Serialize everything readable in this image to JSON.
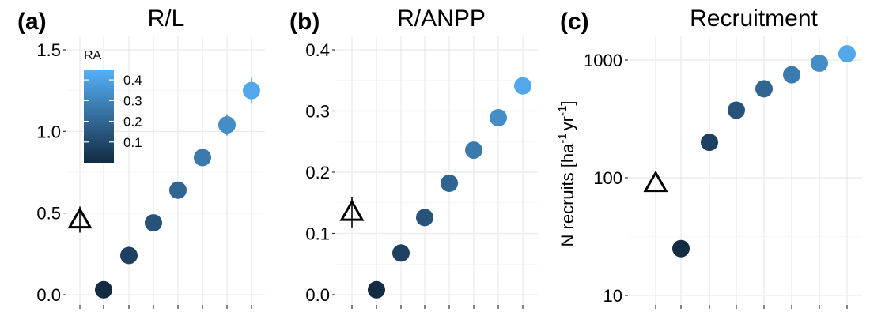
{
  "panels": [
    {
      "tag": "(a)",
      "title": "R/L",
      "ylabel": "",
      "scale": "linear",
      "ylim": [
        -0.02,
        1.57
      ],
      "yticks": [
        "0.0",
        "0.5",
        "1.0",
        "1.5"
      ],
      "ytick_values": [
        0,
        0.5,
        1.0,
        1.5
      ],
      "legend": true
    },
    {
      "tag": "(b)",
      "title": "R/ANPP",
      "ylabel": "",
      "scale": "linear",
      "ylim": [
        -0.01,
        0.415
      ],
      "yticks": [
        "0.0",
        "0.1",
        "0.2",
        "0.3",
        "0.4"
      ],
      "ytick_values": [
        0,
        0.1,
        0.2,
        0.3,
        0.4
      ],
      "legend": false
    },
    {
      "tag": "(c)",
      "title": "Recruitment",
      "ylabel": "N recruits [ha",
      "ylabel_sup1": "-1",
      "ylabel_mid": "yr",
      "ylabel_sup2": "-1",
      "ylabel_end": "]",
      "scale": "log",
      "ylim": [
        8.7,
        1550
      ],
      "yticks": [
        "10",
        "100",
        "1000"
      ],
      "ytick_values": [
        10,
        100,
        1000
      ],
      "legend": false
    }
  ],
  "legend": {
    "title": "RA",
    "labels": [
      "0.1",
      "0.2",
      "0.3",
      "0.4"
    ],
    "values": [
      0.1,
      0.2,
      0.3,
      0.4
    ],
    "range": [
      0.0,
      0.45
    ],
    "color_low": "#132B43",
    "color_high": "#56B1F7"
  },
  "chart_data": [
    {
      "type": "scatter",
      "title": "R/L",
      "x": [
        1,
        2,
        3,
        4,
        5,
        6,
        7,
        8
      ],
      "y": [
        0.46,
        0.03,
        0.24,
        0.44,
        0.64,
        0.84,
        1.04,
        1.25
      ],
      "ra": [
        null,
        0.0,
        0.075,
        0.135,
        0.195,
        0.265,
        0.33,
        0.42
      ],
      "yerr": [
        0.08,
        0.015,
        0.02,
        0.03,
        0.04,
        0.05,
        0.065,
        0.08
      ],
      "marker": [
        "triangle",
        "circle",
        "circle",
        "circle",
        "circle",
        "circle",
        "circle",
        "circle"
      ],
      "ylim": [
        -0.02,
        1.57
      ],
      "grid": true
    },
    {
      "type": "scatter",
      "title": "R/ANPP",
      "x": [
        1,
        2,
        3,
        4,
        5,
        6,
        7,
        8
      ],
      "y": [
        0.135,
        0.008,
        0.068,
        0.126,
        0.182,
        0.236,
        0.289,
        0.341
      ],
      "ra": [
        null,
        0.0,
        0.075,
        0.135,
        0.195,
        0.265,
        0.33,
        0.42
      ],
      "yerr": [
        0.025,
        0.003,
        0.005,
        0.007,
        0.008,
        0.009,
        0.01,
        0.012
      ],
      "marker": [
        "triangle",
        "circle",
        "circle",
        "circle",
        "circle",
        "circle",
        "circle",
        "circle"
      ],
      "ylim": [
        -0.01,
        0.415
      ],
      "grid": true
    },
    {
      "type": "scatter",
      "title": "Recruitment",
      "ylabel": "N recruits [ha-1 yr-1]",
      "x": [
        1,
        2,
        3,
        4,
        5,
        6,
        7,
        8
      ],
      "y": [
        90,
        25,
        200,
        375,
        570,
        750,
        940,
        1130
      ],
      "ra": [
        null,
        0.0,
        0.075,
        0.135,
        0.195,
        0.265,
        0.33,
        0.42
      ],
      "marker": [
        "triangle",
        "circle",
        "circle",
        "circle",
        "circle",
        "circle",
        "circle",
        "circle"
      ],
      "ylim": [
        8.7,
        1550
      ],
      "yscale": "log",
      "grid": true
    }
  ]
}
